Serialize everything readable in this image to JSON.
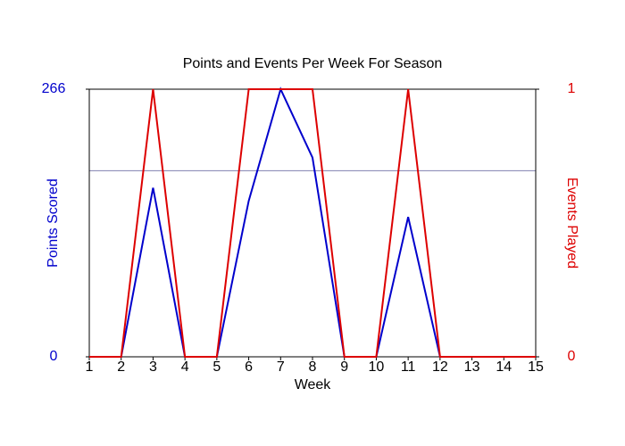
{
  "chart_data": {
    "type": "line",
    "title": "Points and Events Per Week For Season",
    "xlabel": "Week",
    "ylabel": "Points Scored",
    "y2label": "Events Played",
    "x": [
      1,
      2,
      3,
      4,
      5,
      6,
      7,
      8,
      9,
      10,
      11,
      12,
      13,
      14,
      15
    ],
    "xlim": [
      1,
      15
    ],
    "xticks": [
      1,
      2,
      3,
      4,
      5,
      6,
      7,
      8,
      9,
      10,
      11,
      12,
      13,
      14,
      15
    ],
    "ylim": [
      0,
      266
    ],
    "yticks": [
      0,
      266
    ],
    "y2lim": [
      0,
      1
    ],
    "y2ticks": [
      0,
      1
    ],
    "ycolor": "#0000cc",
    "y2color": "#dd0000",
    "hline": {
      "value": 185,
      "color": "#8080b0"
    },
    "grid": false,
    "series": [
      {
        "name": "Points Scored",
        "color": "#0000cc",
        "values": [
          0,
          0,
          168,
          0,
          0,
          155,
          266,
          198,
          0,
          0,
          139,
          0,
          0,
          0,
          0
        ]
      },
      {
        "name": "Events Played",
        "color": "#dd0000",
        "axis": "y2",
        "values": [
          0,
          0,
          1,
          0,
          0,
          1,
          1,
          1,
          0,
          0,
          1,
          0,
          0,
          0,
          0
        ]
      }
    ]
  }
}
